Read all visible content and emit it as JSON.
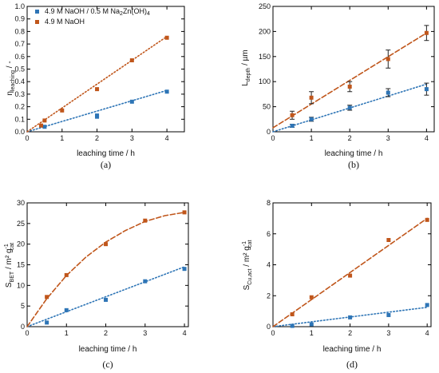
{
  "colors": {
    "blue": "#2e75b6",
    "orange": "#c0561b",
    "axis": "#000000"
  },
  "legend": {
    "entries": [
      {
        "series_index": 0,
        "label": "4.9 M NaOH / 0.5 M Na",
        "sub": "2",
        "label2": "Zn(OH)",
        "sub2": "4"
      },
      {
        "series_index": 1,
        "label": "4.9 M NaOH"
      }
    ]
  },
  "chart_data": [
    {
      "panel": "(a)",
      "type": "scatter",
      "ylabel_main": "η",
      "ylabel_sub": "leaching",
      "ylabel_tail": " / -",
      "xlabel": "leaching time / h",
      "xlim": [
        0,
        4.5
      ],
      "ylim": [
        0,
        1.0
      ],
      "xticks": [
        "0",
        "1",
        "2",
        "3",
        "4"
      ],
      "yticks": [
        "0.0",
        "0.1",
        "0.2",
        "0.3",
        "0.4",
        "0.5",
        "0.6",
        "0.7",
        "0.8",
        "0.9",
        "1.0"
      ],
      "series": [
        {
          "color_key": "blue",
          "line_style": "dotted",
          "x": [
            0.5,
            2,
            2,
            3,
            4
          ],
          "y": [
            0.04,
            0.12,
            0.13,
            0.24,
            0.32
          ],
          "fit": {
            "kind": "linear",
            "x": [
              0,
              4
            ],
            "y": [
              0,
              0.33
            ]
          }
        },
        {
          "color_key": "orange",
          "line_style": "dotted",
          "x": [
            0.4,
            0.5,
            1,
            2,
            3,
            4
          ],
          "y": [
            0.05,
            0.09,
            0.17,
            0.34,
            0.57,
            0.75
          ],
          "fit": {
            "kind": "linear",
            "x": [
              0,
              4
            ],
            "y": [
              0,
              0.76
            ]
          }
        }
      ]
    },
    {
      "panel": "(b)",
      "type": "scatter",
      "ylabel_main": "L",
      "ylabel_sub": "depth",
      "ylabel_tail": " / µm",
      "xlabel": "leaching time / h",
      "xlim": [
        0,
        4.2
      ],
      "ylim": [
        0,
        250
      ],
      "xticks": [
        "0",
        "1",
        "2",
        "3",
        "4"
      ],
      "yticks": [
        "0",
        "50",
        "100",
        "150",
        "200",
        "250"
      ],
      "series": [
        {
          "color_key": "blue",
          "line_style": "dotted",
          "x": [
            0.5,
            1,
            2,
            3,
            4
          ],
          "y": [
            12,
            25,
            48,
            78,
            85
          ],
          "err": [
            3,
            4,
            5,
            8,
            12
          ],
          "fit": {
            "kind": "linear",
            "x": [
              0,
              4
            ],
            "y": [
              0,
              95
            ]
          }
        },
        {
          "color_key": "orange",
          "line_style": "dashed",
          "x": [
            0.5,
            1,
            2,
            3,
            4
          ],
          "y": [
            33,
            68,
            90,
            145,
            197
          ],
          "err": [
            8,
            12,
            10,
            18,
            15
          ],
          "fit": {
            "kind": "linear",
            "x": [
              0,
              4
            ],
            "y": [
              8,
              197
            ]
          }
        }
      ]
    },
    {
      "panel": "(c)",
      "type": "scatter",
      "ylabel_main": "S",
      "ylabel_sub": "BET",
      "ylabel_tail": " / m² g",
      "ylabel_sup": "-1",
      "ylabel_sub2": "cat",
      "xlabel": "leaching time / h",
      "xlim": [
        0,
        4.1
      ],
      "ylim": [
        0,
        30
      ],
      "xticks": [
        "0",
        "1",
        "2",
        "3",
        "4"
      ],
      "yticks": [
        "0",
        "5",
        "10",
        "15",
        "20",
        "25",
        "30"
      ],
      "series": [
        {
          "color_key": "blue",
          "line_style": "dotted",
          "x": [
            0.5,
            1,
            2,
            3,
            4
          ],
          "y": [
            1,
            4,
            6.5,
            11,
            14
          ],
          "fit": {
            "kind": "linear",
            "x": [
              0,
              4
            ],
            "y": [
              0,
              14.5
            ]
          }
        },
        {
          "color_key": "orange",
          "line_style": "dashed",
          "x": [
            0.5,
            1,
            2,
            3,
            4
          ],
          "y": [
            7.2,
            12.5,
            20,
            25.7,
            27.7
          ],
          "fit": {
            "kind": "curve",
            "x": [
              0,
              0.5,
              1,
              1.5,
              2,
              2.5,
              3,
              3.5,
              4
            ],
            "y": [
              0,
              6.8,
              12.4,
              16.9,
              20.5,
              23.3,
              25.5,
              26.9,
              27.7
            ]
          }
        }
      ]
    },
    {
      "panel": "(d)",
      "type": "scatter",
      "ylabel_main": "S",
      "ylabel_sub": "Cu,act",
      "ylabel_tail": " / m² g",
      "ylabel_sup": "-1",
      "ylabel_sub2": "cat",
      "xlabel": "leaching time / h",
      "xlim": [
        0,
        4.1
      ],
      "ylim": [
        0,
        8
      ],
      "xticks": [
        "0",
        "1",
        "2",
        "3",
        "4"
      ],
      "yticks": [
        "0",
        "2",
        "4",
        "6",
        "8"
      ],
      "series": [
        {
          "color_key": "blue",
          "line_style": "dotted",
          "x": [
            0.5,
            1,
            2,
            3,
            4
          ],
          "y": [
            0.05,
            0.15,
            0.6,
            0.75,
            1.4
          ],
          "fit": {
            "kind": "linear",
            "x": [
              0,
              4
            ],
            "y": [
              0,
              1.25
            ]
          }
        },
        {
          "color_key": "orange",
          "line_style": "dashed",
          "x": [
            0.5,
            1,
            2,
            3,
            4
          ],
          "y": [
            0.8,
            1.9,
            3.3,
            5.6,
            6.9
          ],
          "fit": {
            "kind": "linear",
            "x": [
              0,
              4
            ],
            "y": [
              0,
              7.0
            ]
          }
        }
      ]
    }
  ]
}
